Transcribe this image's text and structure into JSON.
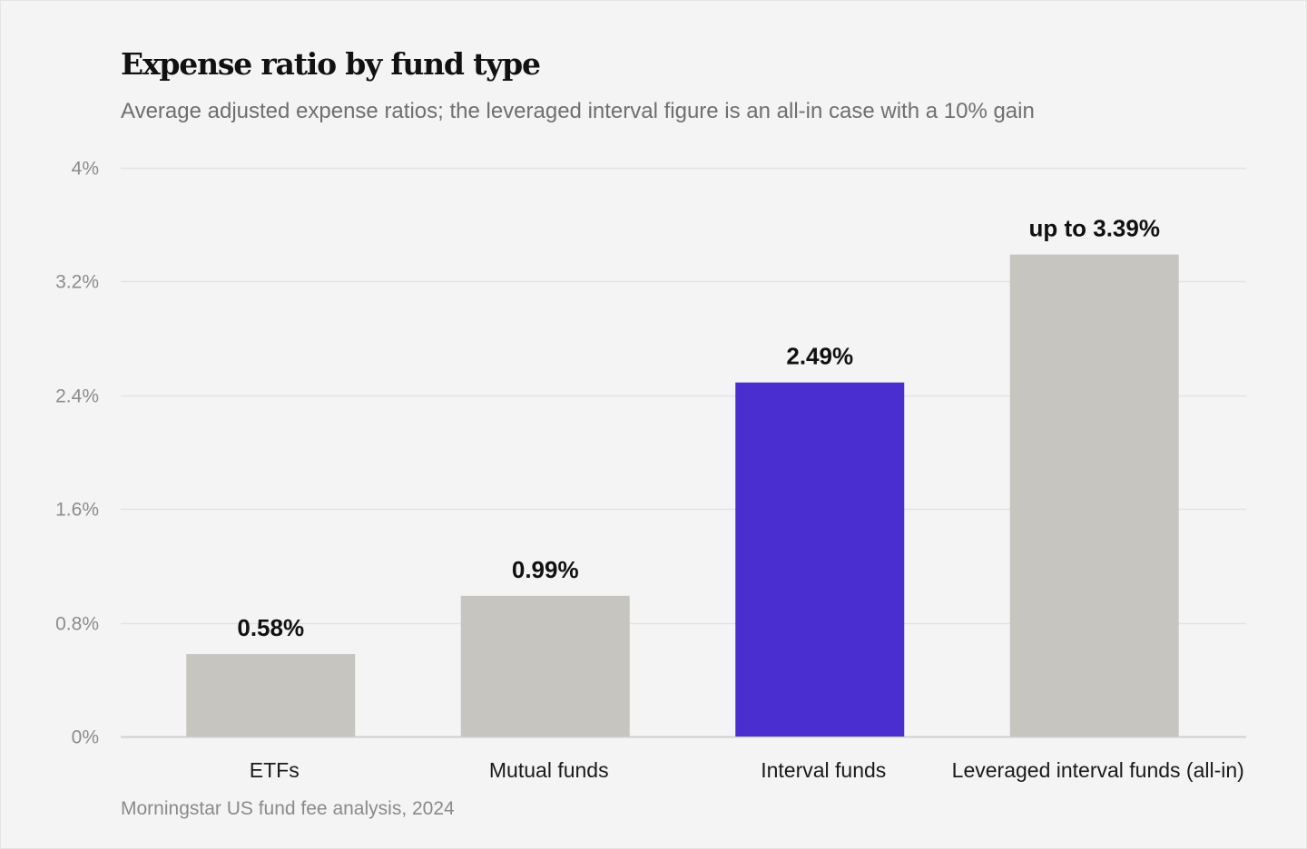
{
  "colors": {
    "background": "#f4f4f4",
    "bar_default": "#c6c5bf",
    "bar_highlight": "#4b2ecf",
    "gridline": "#e2e2e2",
    "axis_line": "#cfcfcf"
  },
  "chart_data": {
    "type": "bar",
    "title": "Expense ratio by fund type",
    "subtitle": "Average adjusted expense ratios; the leveraged interval figure is an all-in case with a 10% gain",
    "source": "Morningstar US fund fee analysis, 2024",
    "xlabel": "",
    "ylabel": "",
    "categories": [
      "ETFs",
      "Mutual funds",
      "Interval funds",
      "Leveraged interval funds (all-in)"
    ],
    "values": [
      0.58,
      0.99,
      2.49,
      3.39
    ],
    "value_labels": [
      "0.58%",
      "0.99%",
      "2.49%",
      "up to 3.39%"
    ],
    "highlight_index": 2,
    "ylim": [
      0,
      4
    ],
    "yticks": [
      0,
      0.8,
      1.6,
      2.4,
      3.2,
      4
    ],
    "ytick_labels": [
      "0%",
      "0.8%",
      "1.6%",
      "2.4%",
      "3.2%",
      "4%"
    ],
    "grid": true,
    "legend": "none"
  }
}
